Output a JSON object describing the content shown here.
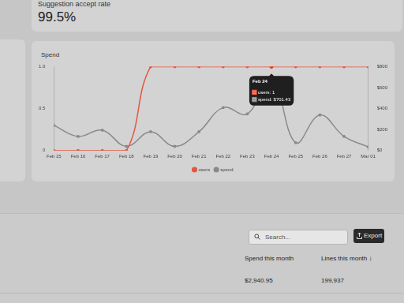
{
  "header": {
    "label": "Suggestion accept rate",
    "value": "99.5%"
  },
  "chart_data": {
    "type": "line",
    "title": "Spend",
    "categories": [
      "Feb 15",
      "Feb 16",
      "Feb 17",
      "Feb 18",
      "Feb 19",
      "Feb 20",
      "Feb 21",
      "Feb 22",
      "Feb 23",
      "Feb 24",
      "Feb 25",
      "Feb 26",
      "Feb 27",
      "Mar 01"
    ],
    "series": [
      {
        "name": "users",
        "color": "#e4573f",
        "values": [
          0,
          0,
          0,
          0,
          1,
          1,
          1,
          1,
          1,
          1,
          1,
          1,
          1,
          1
        ]
      },
      {
        "name": "spend",
        "color": "#8a8a8a",
        "axis": "y2",
        "values": [
          240,
          135,
          195,
          40,
          180,
          40,
          180,
          410,
          350,
          701.43,
          75,
          340,
          135,
          35
        ]
      }
    ],
    "ylim": [
      0,
      1
    ],
    "yticks": [
      0,
      0.5,
      {
        "value": 1,
        "label": "1.0"
      }
    ],
    "y2lim": [
      0,
      800
    ],
    "y2ticks": [
      {
        "value": 0,
        "label": "$0"
      },
      {
        "value": 200,
        "label": "$200"
      },
      {
        "value": 400,
        "label": "$400"
      },
      {
        "value": 600,
        "label": "$600"
      },
      {
        "value": 800,
        "label": "$800"
      }
    ],
    "grid": false,
    "legend": "bottom",
    "tooltip": {
      "title": "Feb 24",
      "lines": [
        "users: 1",
        "spend: $701.43"
      ]
    }
  },
  "table": {
    "search_placeholder": "Search...",
    "button": "Export",
    "columns": [
      "Spend this month",
      "Lines this month ↓"
    ],
    "rows": [
      [
        "$2,940.95",
        "199,937"
      ]
    ]
  }
}
